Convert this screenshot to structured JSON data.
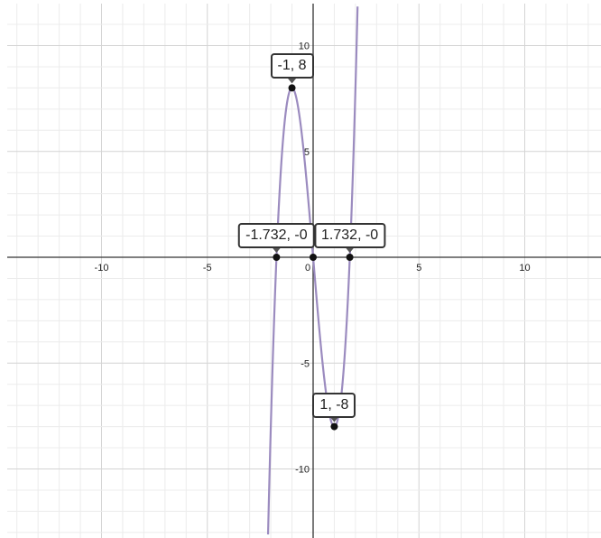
{
  "chart_data": {
    "type": "line",
    "function": "y = 4x^3 - 12x",
    "xlim": [
      -14.4,
      13.6
    ],
    "ylim": [
      -13,
      12
    ],
    "grid": true,
    "x_ticks": [
      "-10",
      "-5",
      "0",
      "5",
      "10"
    ],
    "y_ticks": [
      "10",
      "5",
      "-5",
      "-10"
    ],
    "series": [
      {
        "color": "#9b8bbf"
      }
    ],
    "points": [
      {
        "x": -1,
        "y": 8,
        "label": "-1, 8"
      },
      {
        "x": 1,
        "y": -8,
        "label": "1, -8"
      },
      {
        "x": -1.732,
        "y": 0,
        "label": "-1.732, -0"
      },
      {
        "x": 1.732,
        "y": 0,
        "label": "1.732, -0"
      },
      {
        "x": 0,
        "y": 0
      }
    ]
  }
}
